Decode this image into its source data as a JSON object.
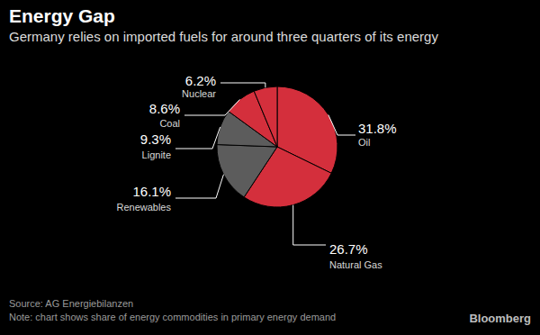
{
  "chart_data": {
    "type": "pie",
    "title": "Energy Gap",
    "subtitle": "Germany relies on imported fuels for around three quarters of its energy",
    "categories": [
      "Oil",
      "Natural Gas",
      "Renewables",
      "Lignite",
      "Coal",
      "Nuclear"
    ],
    "values": [
      31.8,
      26.7,
      16.1,
      9.3,
      8.6,
      6.2
    ],
    "value_labels": [
      "31.8%",
      "26.7%",
      "16.1%",
      "9.3%",
      "8.6%",
      "6.2%"
    ],
    "colors": [
      "#d42f3c",
      "#d42f3c",
      "#5c5c5c",
      "#5c5c5c",
      "#d42f3c",
      "#d42f3c"
    ],
    "data_labels": true,
    "source": "Source: AG Energiebilanzen",
    "note": "Note: chart shows share of energy commodities in primary energy demand",
    "credit": "Bloomberg"
  }
}
